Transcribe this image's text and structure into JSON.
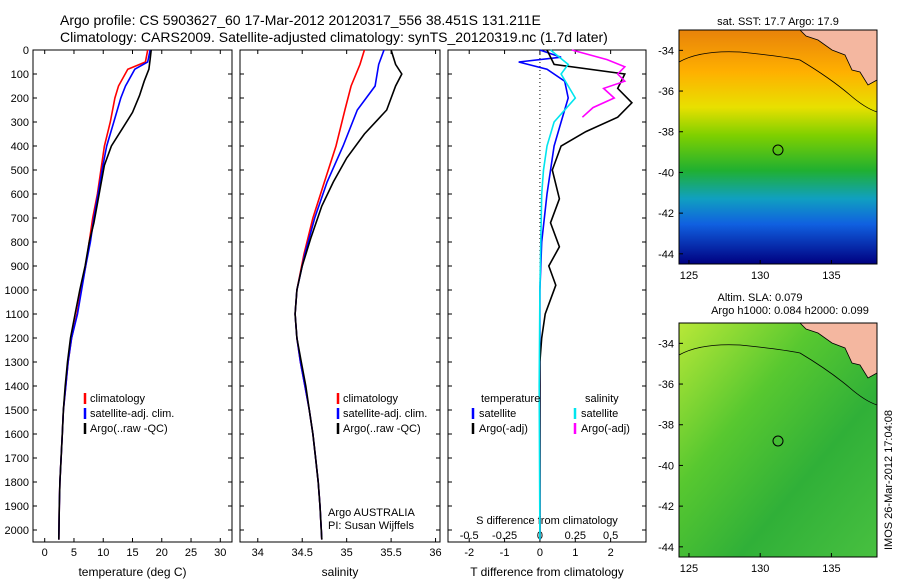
{
  "header": {
    "line1": "Argo profile: CS 5903627_60 17-Mar-2012 20120317_556 38.451S 131.211E",
    "line2": "Climatology: CARS2009. Satellite-adjusted climatology: synTS_20120319.nc (1.7d later)"
  },
  "colors": {
    "climatology": "#ff0000",
    "satellite": "#0000ff",
    "argo": "#000000",
    "s_satellite": "#00e5ee",
    "s_argo": "#ff00ff"
  },
  "depth_ticks": [
    "0",
    "100",
    "200",
    "300",
    "400",
    "500",
    "600",
    "700",
    "800",
    "900",
    "1000",
    "1100",
    "1200",
    "1300",
    "1400",
    "1500",
    "1600",
    "1700",
    "1800",
    "1900",
    "2000"
  ],
  "chart_data": [
    {
      "type": "line",
      "panel": "temperature",
      "xlabel": "temperature (deg C)",
      "xlim": [
        -2,
        32
      ],
      "ylim": [
        0,
        2050
      ],
      "y_reversed": true,
      "xticks": [
        "0",
        "5",
        "10",
        "15",
        "20",
        "25",
        "30"
      ],
      "legend": [
        "climatology",
        "satellite-adj. clim.",
        "Argo(..raw -QC)"
      ],
      "series": [
        {
          "name": "climatology",
          "color": "#ff0000",
          "points": [
            [
              17.6,
              0
            ],
            [
              17.2,
              50
            ],
            [
              14.2,
              80
            ],
            [
              12.6,
              150
            ],
            [
              12.0,
              200
            ],
            [
              11.2,
              300
            ],
            [
              10.2,
              400
            ],
            [
              9.6,
              500
            ],
            [
              9.0,
              600
            ],
            [
              8.2,
              700
            ],
            [
              7.6,
              800
            ],
            [
              7.0,
              900
            ],
            [
              6.2,
              1000
            ],
            [
              5.5,
              1100
            ],
            [
              4.6,
              1200
            ],
            [
              4.0,
              1300
            ],
            [
              3.6,
              1400
            ],
            [
              3.2,
              1500
            ],
            [
              3.0,
              1600
            ],
            [
              2.8,
              1700
            ],
            [
              2.6,
              1800
            ],
            [
              2.5,
              1900
            ],
            [
              2.4,
              2040
            ]
          ]
        },
        {
          "name": "satellite-adj. clim.",
          "color": "#0000ff",
          "points": [
            [
              18.0,
              0
            ],
            [
              17.6,
              50
            ],
            [
              15.4,
              80
            ],
            [
              13.8,
              150
            ],
            [
              13.0,
              200
            ],
            [
              11.8,
              300
            ],
            [
              10.6,
              400
            ],
            [
              9.8,
              500
            ],
            [
              9.1,
              600
            ],
            [
              8.4,
              700
            ],
            [
              7.8,
              800
            ],
            [
              7.0,
              900
            ],
            [
              6.3,
              1000
            ],
            [
              5.6,
              1100
            ],
            [
              4.6,
              1200
            ],
            [
              4.0,
              1300
            ],
            [
              3.6,
              1400
            ],
            [
              3.2,
              1500
            ],
            [
              3.0,
              1600
            ],
            [
              2.8,
              1700
            ],
            [
              2.6,
              1800
            ],
            [
              2.5,
              1900
            ],
            [
              2.4,
              2040
            ]
          ]
        },
        {
          "name": "Argo(..raw -QC)",
          "color": "#000000",
          "points": [
            [
              18.2,
              0
            ],
            [
              18.0,
              40
            ],
            [
              17.8,
              80
            ],
            [
              17.0,
              130
            ],
            [
              16.2,
              190
            ],
            [
              15.0,
              260
            ],
            [
              13.2,
              330
            ],
            [
              11.4,
              400
            ],
            [
              10.2,
              480
            ],
            [
              9.6,
              560
            ],
            [
              9.0,
              640
            ],
            [
              8.4,
              720
            ],
            [
              7.6,
              800
            ],
            [
              6.9,
              900
            ],
            [
              6.0,
              1000
            ],
            [
              5.2,
              1100
            ],
            [
              4.4,
              1200
            ],
            [
              3.9,
              1300
            ],
            [
              3.5,
              1400
            ],
            [
              3.2,
              1500
            ],
            [
              3.0,
              1600
            ],
            [
              2.8,
              1700
            ],
            [
              2.6,
              1800
            ],
            [
              2.5,
              1900
            ],
            [
              2.4,
              2040
            ]
          ]
        }
      ]
    },
    {
      "type": "line",
      "panel": "salinity",
      "xlabel": "salinity",
      "xlim": [
        33.8,
        36.05
      ],
      "ylim": [
        0,
        2050
      ],
      "y_reversed": true,
      "xticks": [
        "34",
        "34.5",
        "35",
        "35.5",
        "36"
      ],
      "legend": [
        "climatology",
        "satellite-adj. clim.",
        "Argo(..raw -QC)"
      ],
      "annotation": [
        "Argo AUSTRALIA",
        "PI: Susan Wijffels"
      ],
      "series": [
        {
          "name": "climatology",
          "color": "#ff0000",
          "points": [
            [
              35.2,
              0
            ],
            [
              35.15,
              60
            ],
            [
              35.05,
              150
            ],
            [
              34.98,
              250
            ],
            [
              34.88,
              400
            ],
            [
              34.75,
              550
            ],
            [
              34.62,
              700
            ],
            [
              34.52,
              850
            ],
            [
              34.44,
              1000
            ],
            [
              34.42,
              1100
            ],
            [
              34.44,
              1200
            ],
            [
              34.48,
              1300
            ],
            [
              34.53,
              1400
            ],
            [
              34.58,
              1500
            ],
            [
              34.62,
              1600
            ],
            [
              34.65,
              1700
            ],
            [
              34.68,
              1800
            ],
            [
              34.7,
              1900
            ],
            [
              34.72,
              2040
            ]
          ]
        },
        {
          "name": "satellite-adj. clim.",
          "color": "#0000ff",
          "points": [
            [
              35.42,
              0
            ],
            [
              35.36,
              60
            ],
            [
              35.32,
              150
            ],
            [
              35.12,
              250
            ],
            [
              34.96,
              400
            ],
            [
              34.78,
              550
            ],
            [
              34.64,
              700
            ],
            [
              34.53,
              850
            ],
            [
              34.44,
              1000
            ],
            [
              34.42,
              1100
            ],
            [
              34.44,
              1200
            ],
            [
              34.48,
              1300
            ],
            [
              34.53,
              1400
            ],
            [
              34.58,
              1500
            ],
            [
              34.62,
              1600
            ],
            [
              34.65,
              1700
            ],
            [
              34.68,
              1800
            ],
            [
              34.7,
              1900
            ],
            [
              34.72,
              2040
            ]
          ]
        },
        {
          "name": "Argo(..raw -QC)",
          "color": "#000000",
          "points": [
            [
              35.5,
              0
            ],
            [
              35.55,
              60
            ],
            [
              35.62,
              100
            ],
            [
              35.55,
              150
            ],
            [
              35.45,
              250
            ],
            [
              35.2,
              350
            ],
            [
              35.0,
              450
            ],
            [
              34.85,
              550
            ],
            [
              34.72,
              650
            ],
            [
              34.6,
              780
            ],
            [
              34.5,
              900
            ],
            [
              34.44,
              1000
            ],
            [
              34.42,
              1100
            ],
            [
              34.44,
              1200
            ],
            [
              34.49,
              1300
            ],
            [
              34.54,
              1400
            ],
            [
              34.58,
              1500
            ],
            [
              34.62,
              1600
            ],
            [
              34.65,
              1700
            ],
            [
              34.68,
              1800
            ],
            [
              34.7,
              1900
            ],
            [
              34.72,
              2040
            ]
          ]
        }
      ]
    },
    {
      "type": "line",
      "panel": "difference",
      "xlabel": "T difference from climatology",
      "x2label": "S difference from climatology",
      "xlim": [
        -2.6,
        3.0
      ],
      "x2lim": [
        -0.65,
        0.75
      ],
      "ylim": [
        0,
        2050
      ],
      "y_reversed": true,
      "xticks": [
        "-2",
        "-1",
        "0",
        "1",
        "2"
      ],
      "x2ticks": [
        "-0.5",
        "-0.25",
        "0",
        "0.25",
        "0.5"
      ],
      "legend": {
        "left_title": "temperature",
        "left": [
          "satellite",
          "Argo(-adj)"
        ],
        "right_title": "salinity",
        "right": [
          "satellite",
          "Argo(-adj)"
        ]
      },
      "series": [
        {
          "name": "temperature satellite",
          "color": "#0000ff",
          "points": [
            [
              0,
              0
            ],
            [
              0.6,
              30
            ],
            [
              -0.6,
              50
            ],
            [
              0.2,
              80
            ],
            [
              0.7,
              130
            ],
            [
              0.8,
              200
            ],
            [
              0.6,
              300
            ],
            [
              0.4,
              400
            ],
            [
              0.2,
              600
            ],
            [
              0.05,
              800
            ],
            [
              0,
              1000
            ],
            [
              0,
              1200
            ],
            [
              0,
              2040
            ]
          ]
        },
        {
          "name": "temperature Argo(-adj)",
          "color": "#000000",
          "points": [
            [
              0.2,
              0
            ],
            [
              0.4,
              60
            ],
            [
              2.4,
              100
            ],
            [
              2.2,
              160
            ],
            [
              2.6,
              220
            ],
            [
              2.2,
              280
            ],
            [
              1.3,
              340
            ],
            [
              0.6,
              400
            ],
            [
              0.35,
              500
            ],
            [
              0.55,
              620
            ],
            [
              0.3,
              720
            ],
            [
              0.55,
              820
            ],
            [
              0.25,
              900
            ],
            [
              0.45,
              980
            ],
            [
              0.15,
              1100
            ],
            [
              0.05,
              1200
            ],
            [
              0,
              1300
            ],
            [
              0,
              2040
            ]
          ]
        },
        {
          "name": "salinity satellite",
          "color": "#00e5ee",
          "points": [
            [
              0.3,
              0
            ],
            [
              0.8,
              60
            ],
            [
              0.6,
              100
            ],
            [
              1.0,
              200
            ],
            [
              0.4,
              300
            ],
            [
              0.2,
              400
            ],
            [
              0.1,
              500
            ],
            [
              0.05,
              600
            ],
            [
              0,
              1000
            ],
            [
              -0.02,
              1400
            ],
            [
              0,
              2040
            ]
          ]
        },
        {
          "name": "salinity Argo(-adj)",
          "color": "#ff00ff",
          "points": [
            [
              0.9,
              0
            ],
            [
              1.9,
              40
            ],
            [
              2.4,
              70
            ],
            [
              2.2,
              100
            ],
            [
              2.4,
              130
            ],
            [
              1.8,
              160
            ],
            [
              2.1,
              200
            ],
            [
              1.5,
              240
            ],
            [
              1.2,
              280
            ]
          ]
        }
      ]
    }
  ],
  "maps": [
    {
      "title": "sat. SST: 17.7 Argo: 17.9",
      "yticks": [
        "-34",
        "-36",
        "-38",
        "-40",
        "-42",
        "-44"
      ],
      "xticks": [
        "125",
        "130",
        "135"
      ]
    },
    {
      "title": "Altim. SLA: 0.079",
      "subtitle": "Argo h1000: 0.084 h2000: 0.099",
      "yticks": [
        "-34",
        "-36",
        "-38",
        "-40",
        "-42",
        "-44"
      ],
      "xticks": [
        "125",
        "130",
        "135"
      ]
    }
  ],
  "watermark": "IMOS 26-Mar-2012 17:04:08"
}
